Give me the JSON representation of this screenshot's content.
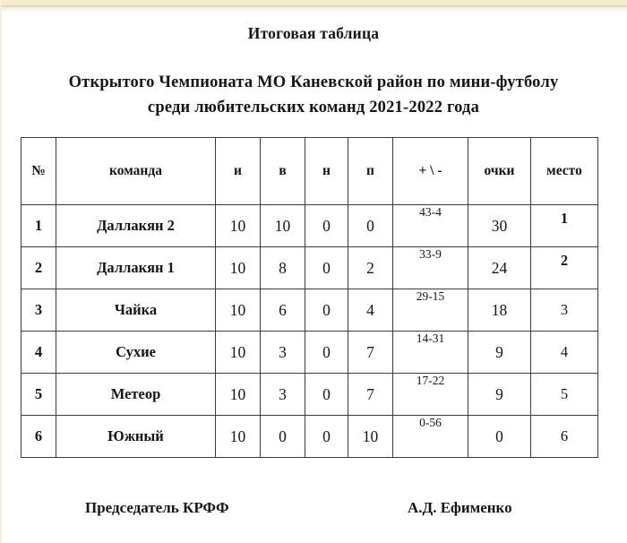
{
  "page": {
    "background": "#ffffff",
    "top_strip_color": "#f7ecca",
    "top_strip_edge_color": "#e2d6b8",
    "text_color": "#151515",
    "border_color": "#3c3c3c"
  },
  "title": "Итоговая таблица",
  "subtitle_line1": "Открытого Чемпионата МО Каневской район по мини-футболу",
  "subtitle_line2": "среди любительских команд 2021-2022 года",
  "table": {
    "columns": [
      {
        "key": "num",
        "label": "№"
      },
      {
        "key": "team",
        "label": "команда"
      },
      {
        "key": "i",
        "label": "и"
      },
      {
        "key": "v",
        "label": "в"
      },
      {
        "key": "n",
        "label": "н"
      },
      {
        "key": "p",
        "label": "п"
      },
      {
        "key": "diff",
        "label": "+ \\ -"
      },
      {
        "key": "points",
        "label": "очки"
      },
      {
        "key": "place",
        "label": "место"
      }
    ],
    "rows": [
      {
        "num": "1",
        "team": "Даллакян 2",
        "i": "10",
        "v": "10",
        "n": "0",
        "p": "0",
        "diff": "43-4",
        "points": "30",
        "place": "1",
        "place_bold": true
      },
      {
        "num": "2",
        "team": "Даллакян 1",
        "i": "10",
        "v": "8",
        "n": "0",
        "p": "2",
        "diff": "33-9",
        "points": "24",
        "place": "2",
        "place_bold": true
      },
      {
        "num": "3",
        "team": "Чайка",
        "i": "10",
        "v": "6",
        "n": "0",
        "p": "4",
        "diff": "29-15",
        "points": "18",
        "place": "3",
        "place_bold": false
      },
      {
        "num": "4",
        "team": "Сухие",
        "i": "10",
        "v": "3",
        "n": "0",
        "p": "7",
        "diff": "14-31",
        "points": "9",
        "place": "4",
        "place_bold": false
      },
      {
        "num": "5",
        "team": "Метеор",
        "i": "10",
        "v": "3",
        "n": "0",
        "p": "7",
        "diff": "17-22",
        "points": "9",
        "place": "5",
        "place_bold": false
      },
      {
        "num": "6",
        "team": "Южный",
        "i": "10",
        "v": "0",
        "n": "0",
        "p": "10",
        "diff": "0-56",
        "points": "0",
        "place": "6",
        "place_bold": false
      }
    ]
  },
  "footer": {
    "left": "Председатель КРФФ",
    "right": "А.Д. Ефименко"
  }
}
